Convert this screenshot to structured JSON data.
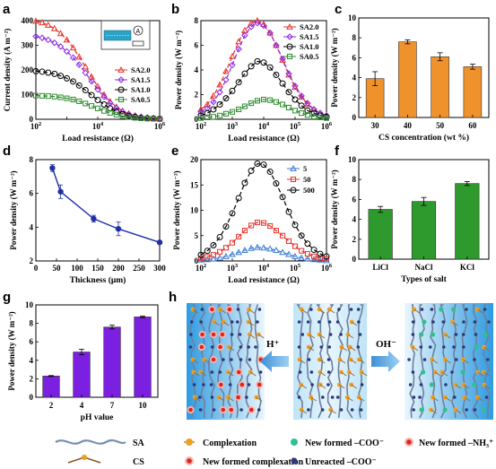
{
  "panel_labels": [
    "a",
    "b",
    "c",
    "d",
    "e",
    "f",
    "g",
    "h"
  ],
  "chart_data": [
    {
      "panel": "a",
      "type": "line",
      "xscale": "log",
      "xlim": [
        100,
        1000000
      ],
      "ylim": [
        0,
        400
      ],
      "xlabel": "Load resistance (Ω)",
      "ylabel": "Current density (A m⁻²)",
      "yticks": [
        0,
        100,
        200,
        300,
        400
      ],
      "xticks": [
        100,
        10000,
        1000000
      ],
      "legend_position": "right",
      "series": [
        {
          "name": "SA2.0",
          "color": "#e8322b",
          "marker": "triangle",
          "x": [
            100,
            160,
            250,
            400,
            630,
            1000,
            1600,
            2500,
            4000,
            6300,
            10000,
            16000,
            25000,
            40000,
            63000,
            100000,
            160000,
            250000,
            400000,
            630000,
            1000000
          ],
          "y": [
            398,
            392,
            382,
            368,
            348,
            322,
            290,
            253,
            213,
            172,
            133,
            99,
            72,
            50,
            34,
            23,
            15,
            10,
            6,
            4,
            3
          ]
        },
        {
          "name": "SA1.5",
          "color": "#8a2be2",
          "marker": "diamond",
          "x": [
            100,
            160,
            250,
            400,
            630,
            1000,
            1600,
            2500,
            4000,
            6300,
            10000,
            16000,
            25000,
            40000,
            63000,
            100000,
            160000,
            250000,
            400000,
            630000,
            1000000
          ],
          "y": [
            336,
            330,
            322,
            310,
            295,
            275,
            250,
            221,
            188,
            154,
            121,
            91,
            66,
            46,
            31,
            21,
            14,
            9,
            6,
            4,
            3
          ]
        },
        {
          "name": "SA1.0",
          "color": "#000000",
          "marker": "circle",
          "x": [
            100,
            160,
            250,
            400,
            630,
            1000,
            1600,
            2500,
            4000,
            6300,
            10000,
            16000,
            25000,
            40000,
            63000,
            100000,
            160000,
            250000,
            400000,
            630000,
            1000000
          ],
          "y": [
            195,
            193,
            189,
            184,
            176,
            166,
            153,
            137,
            118,
            98,
            78,
            60,
            44,
            31,
            21,
            14,
            9,
            6,
            4,
            3,
            2
          ]
        },
        {
          "name": "SA0.5",
          "color": "#2e8b2e",
          "marker": "square",
          "x": [
            100,
            160,
            250,
            400,
            630,
            1000,
            1600,
            2500,
            4000,
            6300,
            10000,
            16000,
            25000,
            40000,
            63000,
            100000,
            160000,
            250000,
            400000,
            630000,
            1000000
          ],
          "y": [
            96,
            95,
            94,
            92,
            89,
            85,
            80,
            73,
            64,
            54,
            44,
            34,
            26,
            19,
            13,
            9,
            6,
            4,
            3,
            2,
            1
          ]
        }
      ]
    },
    {
      "panel": "b",
      "type": "line",
      "xscale": "log",
      "xlim": [
        100,
        1000000
      ],
      "ylim": [
        0,
        8
      ],
      "xlabel": "Load resistance (Ω)",
      "ylabel": "Power density (W m⁻²)",
      "yticks": [
        0,
        2,
        4,
        6,
        8
      ],
      "xticks": [
        100,
        1000,
        10000,
        100000,
        1000000
      ],
      "legend_position": "top-right",
      "series": [
        {
          "name": "SA2.0",
          "color": "#e8322b",
          "marker": "triangle",
          "x": [
            100,
            160,
            250,
            400,
            630,
            1000,
            1600,
            2500,
            4000,
            6300,
            10000,
            16000,
            25000,
            40000,
            63000,
            100000,
            160000,
            250000,
            400000,
            630000,
            1000000
          ],
          "y": [
            0.8,
            1.2,
            1.9,
            2.8,
            3.9,
            5.1,
            6.3,
            7.2,
            7.8,
            8.0,
            7.7,
            7.0,
            6.0,
            4.8,
            3.6,
            2.6,
            1.8,
            1.2,
            0.8,
            0.5,
            0.3
          ]
        },
        {
          "name": "SA1.5",
          "color": "#8a2be2",
          "marker": "diamond",
          "x": [
            100,
            160,
            250,
            400,
            630,
            1000,
            1600,
            2500,
            4000,
            6300,
            10000,
            16000,
            25000,
            40000,
            63000,
            100000,
            160000,
            250000,
            400000,
            630000,
            1000000
          ],
          "y": [
            0.6,
            0.9,
            1.4,
            2.2,
            3.2,
            4.4,
            5.7,
            6.8,
            7.5,
            7.8,
            7.6,
            7.0,
            6.0,
            4.9,
            3.7,
            2.7,
            1.9,
            1.3,
            0.8,
            0.5,
            0.3
          ]
        },
        {
          "name": "SA1.0",
          "color": "#000000",
          "marker": "circle",
          "x": [
            100,
            160,
            250,
            400,
            630,
            1000,
            1600,
            2500,
            4000,
            6300,
            10000,
            16000,
            25000,
            40000,
            63000,
            100000,
            160000,
            250000,
            400000,
            630000,
            1000000
          ],
          "y": [
            0.3,
            0.5,
            0.8,
            1.2,
            1.7,
            2.3,
            3.0,
            3.7,
            4.3,
            4.7,
            4.6,
            4.2,
            3.6,
            2.9,
            2.2,
            1.6,
            1.1,
            0.7,
            0.5,
            0.3,
            0.2
          ]
        },
        {
          "name": "SA0.5",
          "color": "#2e8b2e",
          "marker": "square",
          "x": [
            100,
            160,
            250,
            400,
            630,
            1000,
            1600,
            2500,
            4000,
            6300,
            10000,
            16000,
            25000,
            40000,
            63000,
            100000,
            160000,
            250000,
            400000,
            630000,
            1000000
          ],
          "y": [
            0.1,
            0.15,
            0.2,
            0.3,
            0.45,
            0.6,
            0.8,
            1.05,
            1.3,
            1.5,
            1.6,
            1.55,
            1.4,
            1.2,
            0.95,
            0.7,
            0.5,
            0.35,
            0.22,
            0.15,
            0.1
          ]
        }
      ]
    },
    {
      "panel": "c",
      "type": "bar",
      "categories": [
        "30",
        "40",
        "50",
        "60"
      ],
      "values": [
        3.9,
        7.6,
        6.1,
        5.1
      ],
      "errors": [
        0.7,
        0.2,
        0.4,
        0.25
      ],
      "color": "#f0922b",
      "xlabel": "CS concentration (wt %)",
      "ylabel": "Power density (W m⁻²)",
      "ylim": [
        0,
        10
      ],
      "yticks": [
        0,
        2,
        4,
        6,
        8,
        10
      ]
    },
    {
      "panel": "d",
      "type": "line",
      "x": [
        40,
        60,
        140,
        200,
        300
      ],
      "values": [
        7.5,
        6.1,
        4.5,
        3.9,
        3.1
      ],
      "errors": [
        0.2,
        0.4,
        0.2,
        0.4,
        0.1
      ],
      "color": "#1f2fa8",
      "xlabel": "Thickness (μm)",
      "ylabel": "Power density (W m⁻²)",
      "xlim": [
        0,
        300
      ],
      "ylim": [
        2,
        8
      ],
      "xticks": [
        0,
        50,
        100,
        150,
        200,
        250,
        300
      ],
      "yticks": [
        2,
        4,
        6,
        8
      ]
    },
    {
      "panel": "e",
      "type": "line",
      "xscale": "log",
      "xlim": [
        100,
        1000000
      ],
      "ylim": [
        0,
        20
      ],
      "xlabel": "Load resistance (Ω)",
      "ylabel": "Power density (W m⁻²)",
      "yticks": [
        0,
        5,
        10,
        15,
        20
      ],
      "xticks": [
        100,
        1000,
        10000,
        100000,
        1000000
      ],
      "legend_position": "top-right",
      "series": [
        {
          "name": "5",
          "color": "#3a7bd5",
          "marker": "triangle",
          "x": [
            100,
            160,
            250,
            400,
            630,
            1000,
            1600,
            2500,
            4000,
            6300,
            10000,
            16000,
            25000,
            40000,
            63000,
            100000,
            160000,
            250000,
            400000,
            630000,
            1000000
          ],
          "y": [
            0.2,
            0.3,
            0.4,
            0.6,
            0.9,
            1.3,
            1.7,
            2.1,
            2.5,
            2.7,
            2.6,
            2.4,
            2.1,
            1.7,
            1.3,
            0.9,
            0.6,
            0.4,
            0.3,
            0.2,
            0.1
          ]
        },
        {
          "name": "50",
          "color": "#e8322b",
          "marker": "square",
          "x": [
            100,
            160,
            250,
            400,
            630,
            1000,
            1600,
            2500,
            4000,
            6300,
            10000,
            16000,
            25000,
            40000,
            63000,
            100000,
            160000,
            250000,
            400000,
            630000,
            1000000
          ],
          "y": [
            0.5,
            0.8,
            1.2,
            1.8,
            2.6,
            3.6,
            4.8,
            6.0,
            7.0,
            7.6,
            7.5,
            6.9,
            6.0,
            5.0,
            3.9,
            2.9,
            2.0,
            1.4,
            0.9,
            0.6,
            0.4
          ]
        },
        {
          "name": "500",
          "color": "#000000",
          "marker": "circle",
          "x": [
            100,
            160,
            250,
            400,
            630,
            1000,
            1600,
            2500,
            4000,
            6300,
            10000,
            16000,
            25000,
            40000,
            63000,
            100000,
            160000,
            250000,
            400000,
            630000,
            1000000
          ],
          "y": [
            1.2,
            2.0,
            3.1,
            4.7,
            6.8,
            9.4,
            12.4,
            15.4,
            17.8,
            19.2,
            19.0,
            17.6,
            15.3,
            12.6,
            9.7,
            7.1,
            5.0,
            3.4,
            2.2,
            1.4,
            0.9
          ]
        }
      ]
    },
    {
      "panel": "f",
      "type": "bar",
      "categories": [
        "LiCl",
        "NaCl",
        "KCl"
      ],
      "values": [
        5.0,
        5.8,
        7.6
      ],
      "errors": [
        0.3,
        0.4,
        0.2
      ],
      "color": "#2e9a2e",
      "xlabel": "Types of salt",
      "ylabel": "Power density (W m⁻²)",
      "ylim": [
        0,
        10
      ],
      "yticks": [
        0,
        2,
        4,
        6,
        8,
        10
      ]
    },
    {
      "panel": "g",
      "type": "bar",
      "categories": [
        "2",
        "4",
        "7",
        "10"
      ],
      "values": [
        2.3,
        4.9,
        7.6,
        8.7
      ],
      "errors": [
        0.05,
        0.3,
        0.2,
        0.1
      ],
      "color": "#7b1fe0",
      "xlabel": "pH value",
      "ylabel": "Power density (W m⁻²)",
      "ylim": [
        0,
        10
      ],
      "yticks": [
        0,
        2,
        4,
        6,
        8,
        10
      ]
    }
  ],
  "schematic": {
    "arrow_left_label": "H⁺",
    "arrow_right_label": "OH⁻",
    "legend": {
      "sa": "SA",
      "cs": "CS",
      "complexation": "Complexation",
      "new_complexation": "New formed complexation",
      "new_coo": "New formed –COO⁻",
      "unreacted_coo": "Unreacted –COO⁻",
      "new_nh3": "New formed –NH₃⁺"
    }
  }
}
